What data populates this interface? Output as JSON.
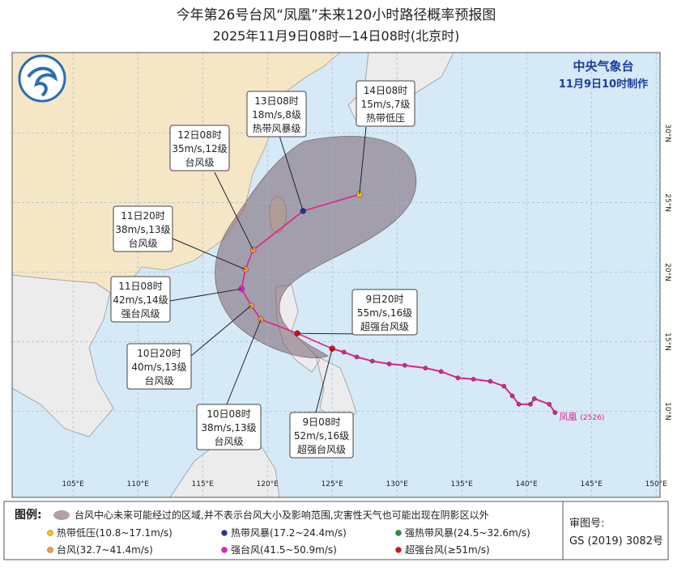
{
  "header": {
    "title": "今年第26号台风“凤凰”未来120小时路径概率预报图",
    "subtitle": "2025年11月9日08时—14日08时(北京时)"
  },
  "issuer": {
    "agency": "中央气象台",
    "issued": "11月9日10时制作"
  },
  "map": {
    "lonlim": [
      100.3,
      150.3
    ],
    "latlim": [
      3.8,
      35.8
    ],
    "lon_ticks": [
      {
        "value": 105,
        "label": "105°E"
      },
      {
        "value": 110,
        "label": "110°E"
      },
      {
        "value": 115,
        "label": "115°E"
      },
      {
        "value": 120,
        "label": "120°E"
      },
      {
        "value": 125,
        "label": "125°E"
      },
      {
        "value": 130,
        "label": "130°E"
      },
      {
        "value": 135,
        "label": "135°E"
      },
      {
        "value": 140,
        "label": "140°E"
      },
      {
        "value": 145,
        "label": "145°E"
      },
      {
        "value": 150,
        "label": "150°E"
      }
    ],
    "lat_ticks": [
      {
        "value": 10,
        "label": "10°N"
      },
      {
        "value": 15,
        "label": "15°N"
      },
      {
        "value": 20,
        "label": "20°N"
      },
      {
        "value": 25,
        "label": "25°N"
      },
      {
        "value": 30,
        "label": "30°N"
      }
    ]
  },
  "storm": {
    "name": "凤凰",
    "code": "(2526)",
    "color": "#e0218a"
  },
  "past_track": {
    "color": "#e0218a",
    "lon": [
      142.2,
      141.75,
      140.6,
      140.3,
      139.4,
      138.9,
      138.25,
      137.2,
      135.9,
      134.7,
      133.4,
      132.2,
      130.6,
      129.4,
      128.1,
      126.9,
      125.9,
      125.0
    ],
    "lat": [
      9.9,
      10.5,
      10.9,
      10.5,
      10.5,
      11.1,
      11.8,
      12.15,
      12.3,
      12.4,
      12.85,
      13.1,
      13.3,
      13.4,
      13.6,
      13.9,
      14.25,
      14.5
    ]
  },
  "forecast": [
    {
      "time": "9日08时",
      "wind": "52m/s,16级",
      "grade": "超强台风级",
      "lon": 125.0,
      "lat": 14.5,
      "color": "#e01010"
    },
    {
      "time": "9日20时",
      "wind": "55m/s,16级",
      "grade": "超强台风级",
      "lon": 122.3,
      "lat": 15.6,
      "color": "#e01010"
    },
    {
      "time": "10日08时",
      "wind": "38m/s,13级",
      "grade": "台风级",
      "lon": 119.5,
      "lat": 16.6,
      "color": "#f59a40"
    },
    {
      "time": "10日20时",
      "wind": "40m/s,13级",
      "grade": "台风级",
      "lon": 118.75,
      "lat": 17.6,
      "color": "#f59a40"
    },
    {
      "time": "11日08时",
      "wind": "42m/s,14级",
      "grade": "强台风级",
      "lon": 118.0,
      "lat": 18.8,
      "color": "#e020d0"
    },
    {
      "time": "11日20时",
      "wind": "38m/s,13级",
      "grade": "台风级",
      "lon": 118.3,
      "lat": 20.2,
      "color": "#f59a40"
    },
    {
      "time": "12日08时",
      "wind": "35m/s,12级",
      "grade": "台风级",
      "lon": 118.9,
      "lat": 21.6,
      "color": "#f59a40"
    },
    {
      "time": "13日08时",
      "wind": "18m/s,8级",
      "grade": "热带风暴级",
      "lon": 122.75,
      "lat": 24.4,
      "color": "#2233aa"
    },
    {
      "time": "14日08时",
      "wind": "15m/s,7级",
      "grade": "热带低压",
      "lon": 127.1,
      "lat": 25.6,
      "color": "#f5c518"
    }
  ],
  "legend": {
    "title": "图例:",
    "cone": "台风中心未来可能经过的区域,并不表示台风大小及影响范围,灾害性天气也可能出现在阴影区以外",
    "items": [
      {
        "label": "热带低压(10.8~17.1m/s)",
        "color": "#f5c518"
      },
      {
        "label": "热带风暴(17.2~24.4m/s)",
        "color": "#2233aa"
      },
      {
        "label": "强热带风暴(24.5~32.6m/s)",
        "color": "#1a9a3a"
      },
      {
        "label": "台风(32.7~41.4m/s)",
        "color": "#f59a40"
      },
      {
        "label": "强台风(41.5~50.9m/s)",
        "color": "#e020d0"
      },
      {
        "label": "超强台风(≥51m/s)",
        "color": "#e01010"
      }
    ]
  },
  "approval": {
    "label": "审图号:",
    "number": "GS (2019) 3082号"
  }
}
